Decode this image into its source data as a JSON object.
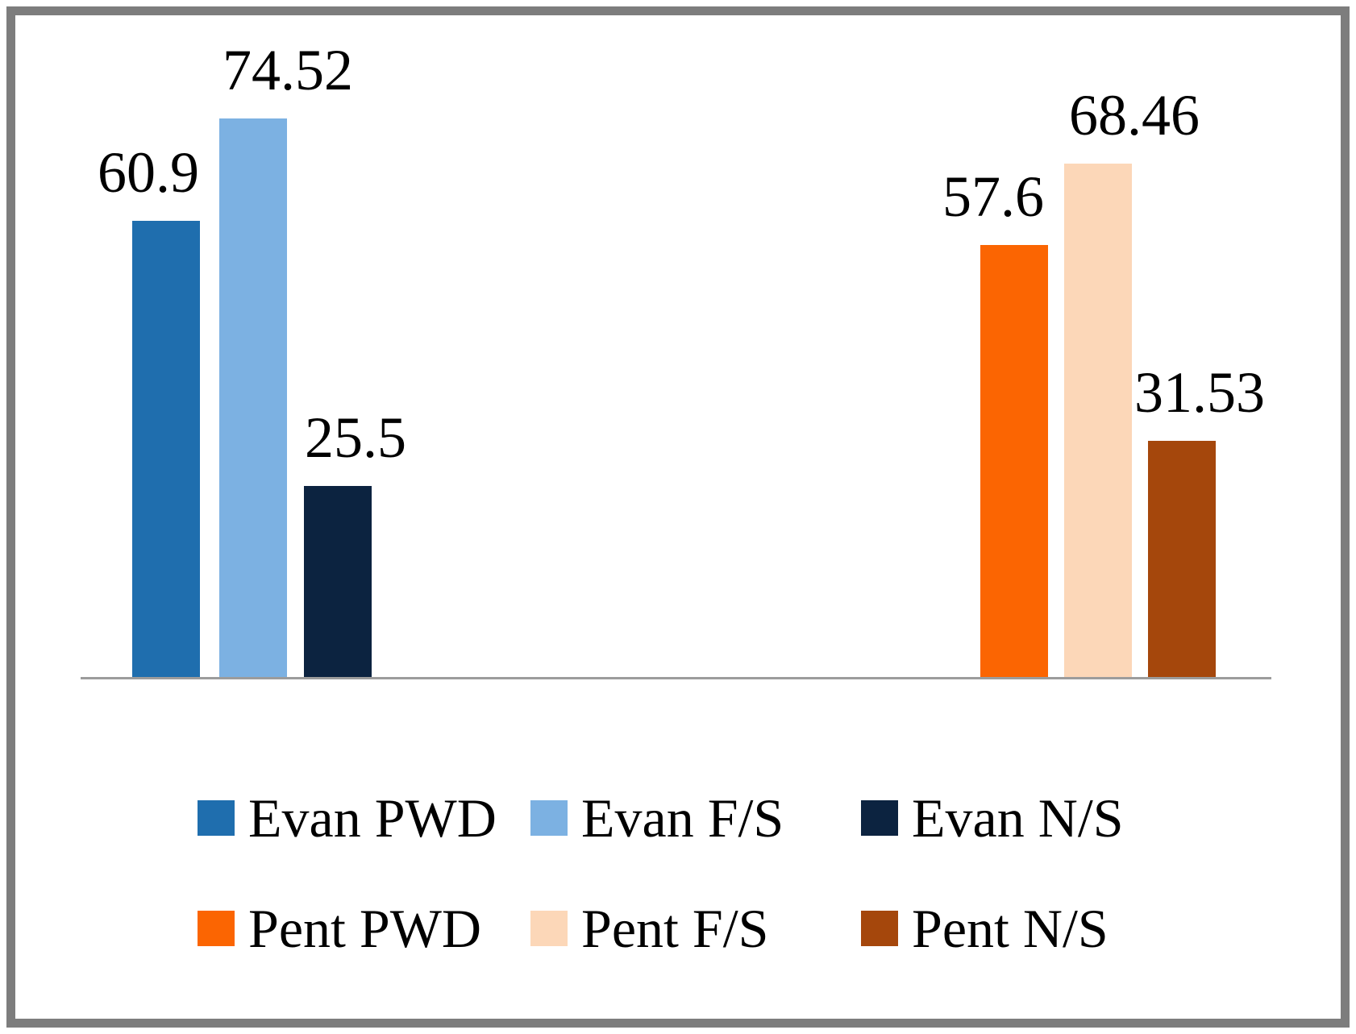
{
  "frame": {
    "border_color": "#7d7d7d",
    "background": "#ffffff"
  },
  "chart_data": {
    "type": "bar",
    "title": "",
    "xlabel": "",
    "ylabel": "",
    "ylim": [
      0,
      80
    ],
    "grid": false,
    "axis_line_color": "#9c9c9c",
    "categories": [
      "PWD",
      "F/S",
      "N/S"
    ],
    "series": [
      {
        "name": "Evan",
        "values": [
          60.9,
          74.52,
          25.5
        ],
        "colors": [
          "#1f6eae",
          "#7cb1e2",
          "#0c2340"
        ],
        "labels": [
          "Evan PWD",
          "Evan F/S",
          "Evan N/S"
        ]
      },
      {
        "name": "Pent",
        "values": [
          57.6,
          68.46,
          31.53
        ],
        "colors": [
          "#fb6502",
          "#fcd7b8",
          "#a5470c"
        ],
        "labels": [
          "Pent PWD",
          "Pent F/S",
          "Pent N/S"
        ]
      }
    ],
    "data_labels": [
      "60.9",
      "74.52",
      "25.5",
      "57.6",
      "68.46",
      "31.53"
    ],
    "legend_position": "bottom",
    "legend": {
      "rows": [
        [
          {
            "label": "Evan PWD",
            "color": "#1f6eae"
          },
          {
            "label": "Evan F/S",
            "color": "#7cb1e2"
          },
          {
            "label": "Evan N/S",
            "color": "#0c2340"
          }
        ],
        [
          {
            "label": "Pent PWD",
            "color": "#fb6502"
          },
          {
            "label": "Pent F/S",
            "color": "#fcd7b8"
          },
          {
            "label": "Pent N/S",
            "color": "#a5470c"
          }
        ]
      ]
    }
  }
}
